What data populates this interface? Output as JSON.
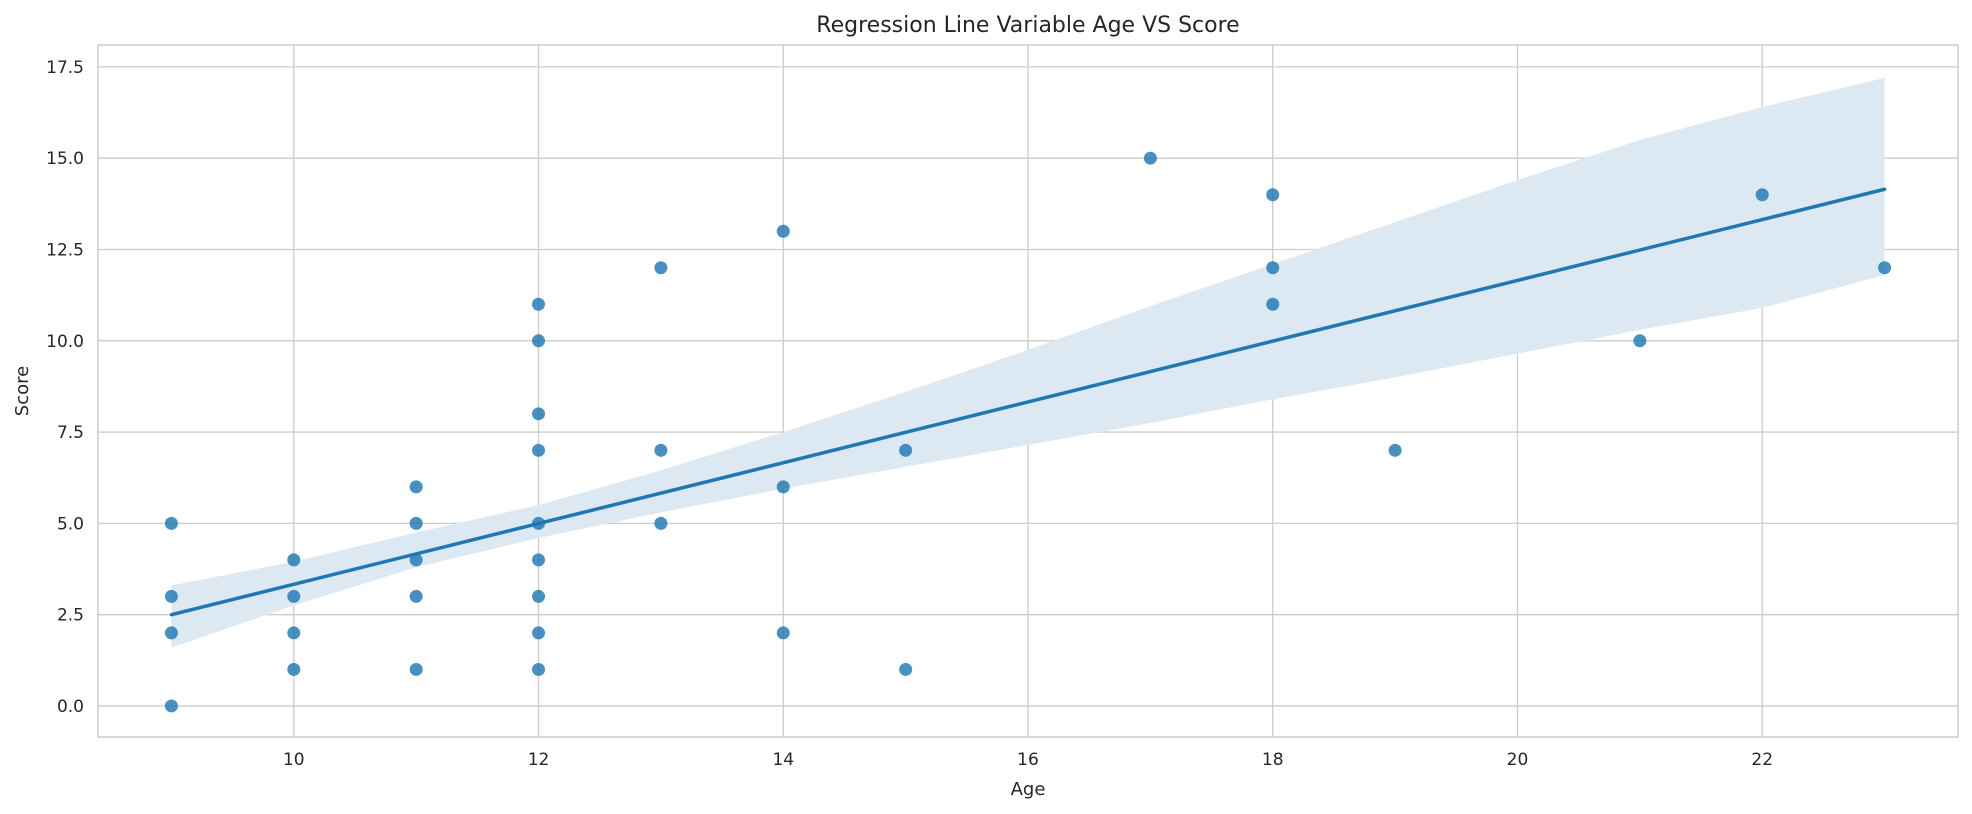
{
  "colors": {
    "point": "#1f77b4",
    "line": "#1f77b4",
    "band": "#dce8f2",
    "grid": "#cccccc",
    "axis_frame": "#cccccc",
    "background": "#ffffff"
  },
  "chart_data": {
    "type": "scatter",
    "title": "Regression Line Variable Age VS Score",
    "xlabel": "Age",
    "ylabel": "Score",
    "xlim": [
      8.4,
      23.6
    ],
    "ylim": [
      -0.85,
      18.1
    ],
    "x_ticks": [
      10,
      12,
      14,
      16,
      18,
      20,
      22
    ],
    "y_ticks": [
      0,
      2.5,
      5,
      7.5,
      10,
      12.5,
      15,
      17.5
    ],
    "x_tick_labels": [
      "10",
      "12",
      "14",
      "16",
      "18",
      "20",
      "22"
    ],
    "y_tick_labels": [
      "0.0",
      "2.5",
      "5.0",
      "7.5",
      "10.0",
      "12.5",
      "15.0",
      "17.5"
    ],
    "grid": true,
    "points": [
      {
        "x": 9,
        "y": 5
      },
      {
        "x": 9,
        "y": 3
      },
      {
        "x": 9,
        "y": 2
      },
      {
        "x": 9,
        "y": 0
      },
      {
        "x": 10,
        "y": 4
      },
      {
        "x": 10,
        "y": 3
      },
      {
        "x": 10,
        "y": 2
      },
      {
        "x": 10,
        "y": 1
      },
      {
        "x": 11,
        "y": 6
      },
      {
        "x": 11,
        "y": 5
      },
      {
        "x": 11,
        "y": 4
      },
      {
        "x": 11,
        "y": 3
      },
      {
        "x": 11,
        "y": 1
      },
      {
        "x": 12,
        "y": 11
      },
      {
        "x": 12,
        "y": 10
      },
      {
        "x": 12,
        "y": 8
      },
      {
        "x": 12,
        "y": 7
      },
      {
        "x": 12,
        "y": 5
      },
      {
        "x": 12,
        "y": 4
      },
      {
        "x": 12,
        "y": 3
      },
      {
        "x": 12,
        "y": 2
      },
      {
        "x": 12,
        "y": 1
      },
      {
        "x": 13,
        "y": 12
      },
      {
        "x": 13,
        "y": 7
      },
      {
        "x": 13,
        "y": 5
      },
      {
        "x": 14,
        "y": 13
      },
      {
        "x": 14,
        "y": 6
      },
      {
        "x": 14,
        "y": 2
      },
      {
        "x": 15,
        "y": 7
      },
      {
        "x": 15,
        "y": 1
      },
      {
        "x": 17,
        "y": 15
      },
      {
        "x": 18,
        "y": 14
      },
      {
        "x": 18,
        "y": 12
      },
      {
        "x": 18,
        "y": 11
      },
      {
        "x": 19,
        "y": 7
      },
      {
        "x": 21,
        "y": 10
      },
      {
        "x": 22,
        "y": 14
      },
      {
        "x": 23,
        "y": 12
      }
    ],
    "regression": {
      "x": [
        9,
        23
      ],
      "y": [
        2.5,
        14.15
      ]
    },
    "confidence_band": [
      {
        "x": 9,
        "lower": 1.6,
        "upper": 3.3
      },
      {
        "x": 10,
        "lower": 2.75,
        "upper": 3.95
      },
      {
        "x": 11,
        "lower": 3.8,
        "upper": 4.75
      },
      {
        "x": 12,
        "lower": 4.6,
        "upper": 5.5
      },
      {
        "x": 13,
        "lower": 5.3,
        "upper": 6.45
      },
      {
        "x": 14,
        "lower": 5.95,
        "upper": 7.5
      },
      {
        "x": 15,
        "lower": 6.55,
        "upper": 8.6
      },
      {
        "x": 16,
        "lower": 7.15,
        "upper": 9.75
      },
      {
        "x": 17,
        "lower": 7.75,
        "upper": 10.95
      },
      {
        "x": 18,
        "lower": 8.4,
        "upper": 12.1
      },
      {
        "x": 19,
        "lower": 9.0,
        "upper": 13.25
      },
      {
        "x": 20,
        "lower": 9.65,
        "upper": 14.4
      },
      {
        "x": 21,
        "lower": 10.3,
        "upper": 15.5
      },
      {
        "x": 22,
        "lower": 10.9,
        "upper": 16.4
      },
      {
        "x": 23,
        "lower": 11.8,
        "upper": 17.2
      }
    ]
  }
}
